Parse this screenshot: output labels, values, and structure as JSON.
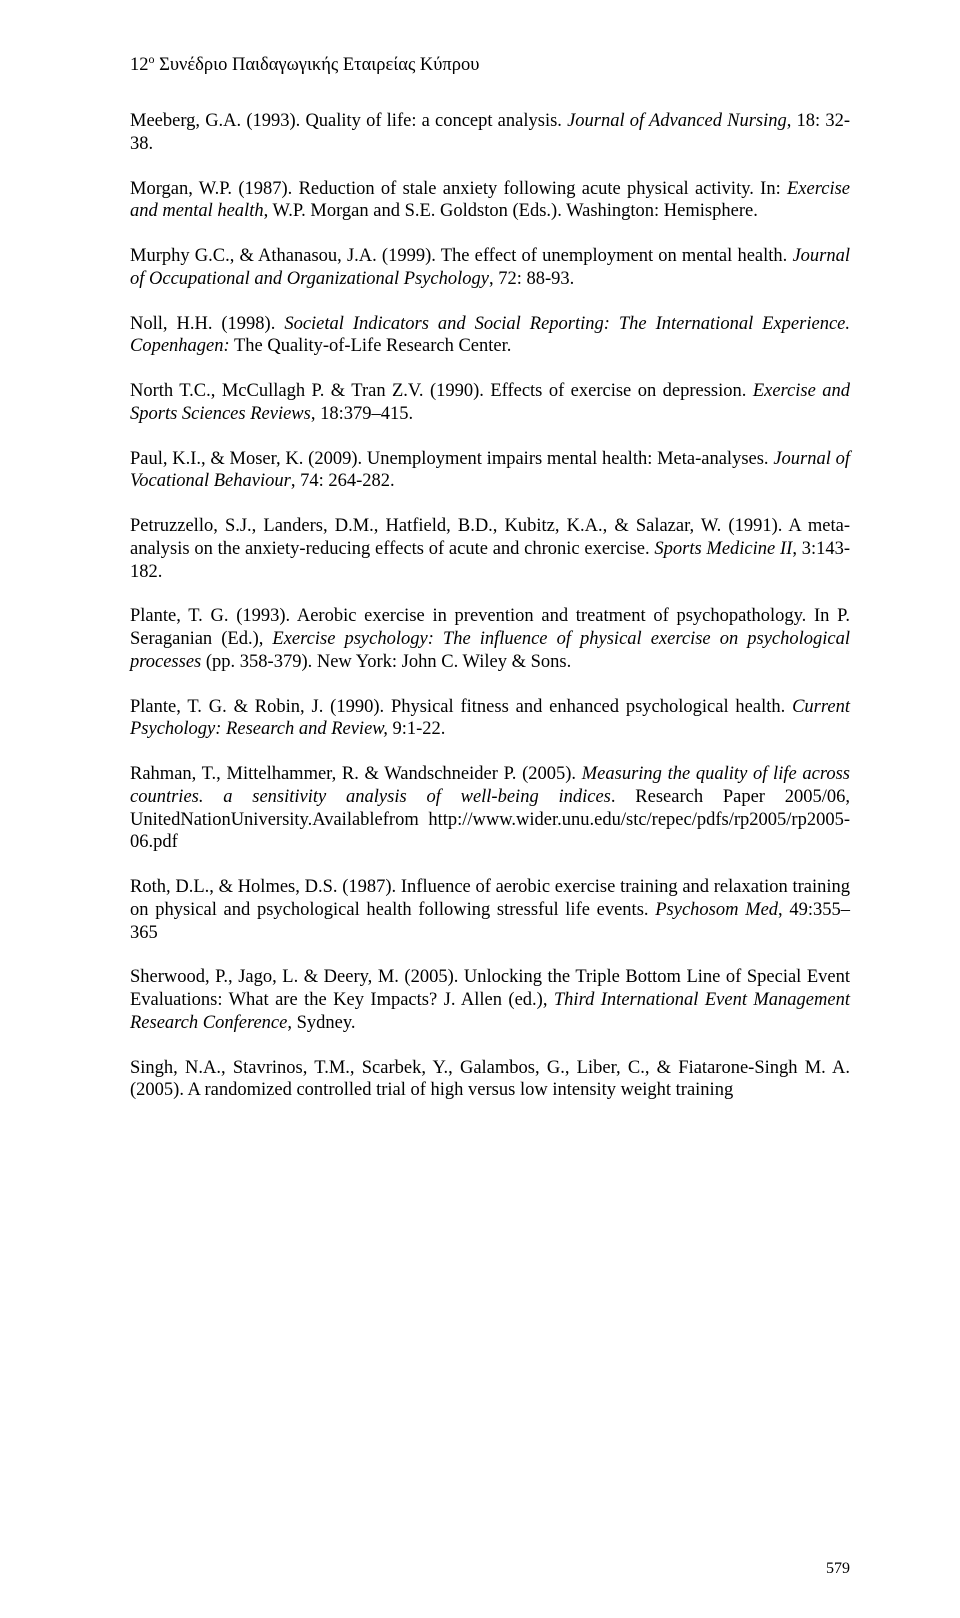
{
  "page": {
    "header_prefix": "12",
    "header_super": "ο",
    "header_rest": " Συνέδριο Παιδαγωγικής Εταιρείας Κύπρου",
    "page_number": "579"
  },
  "refs": [
    {
      "segs": [
        {
          "t": "Meeberg, G.A. (1993). Quality of life: a concept analysis. "
        },
        {
          "t": "Journal of Advanced Nursing",
          "i": true
        },
        {
          "t": ", 18: 32-38."
        }
      ]
    },
    {
      "segs": [
        {
          "t": "Morgan, W.P. (1987). Reduction of stale anxiety following acute physical activity. In: "
        },
        {
          "t": "Exercise and mental health",
          "i": true
        },
        {
          "t": ", W.P. Morgan and S.E. Goldston (Eds.). Washington: Hemisphere."
        }
      ]
    },
    {
      "segs": [
        {
          "t": "Murphy G.C., & Athanasou, J.A. (1999). The effect of unemployment on mental health. "
        },
        {
          "t": "Journal of Occupational and Organizational Psychology",
          "i": true
        },
        {
          "t": ", 72: 88-93."
        }
      ]
    },
    {
      "segs": [
        {
          "t": "Noll, H.H. (1998). "
        },
        {
          "t": "Societal Indicators and Social Reporting: The International Experience. Copenhagen:",
          "i": true
        },
        {
          "t": " The Quality-of-Life Research Center."
        }
      ]
    },
    {
      "segs": [
        {
          "t": "North T.C., McCullagh P. & Tran Z.V. (1990). Effects of exercise on depression. "
        },
        {
          "t": "Exercise and Sports Sciences Reviews",
          "i": true
        },
        {
          "t": ", 18:379–415."
        }
      ]
    },
    {
      "segs": [
        {
          "t": "Paul, K.I., & Moser, K. (2009). Unemployment impairs mental health: Meta-analyses. "
        },
        {
          "t": "Journal of Vocational Behaviour",
          "i": true
        },
        {
          "t": ", 74: 264-282."
        }
      ]
    },
    {
      "segs": [
        {
          "t": "Petruzzello, S.J., Landers, D.M., Hatfield, B.D., Kubitz, K.A., & Salazar, W. (1991). A meta-analysis on the anxiety-reducing effects of acute and chronic exercise. "
        },
        {
          "t": "Sports Medicine II",
          "i": true
        },
        {
          "t": ", 3:143-182."
        }
      ]
    },
    {
      "segs": [
        {
          "t": "Plante, T. G. (1993). Aerobic exercise in prevention and treatment of psychopathology. In P. Seraganian (Ed.), "
        },
        {
          "t": "Exercise psychology: The influence of physical exercise on psychological processes",
          "i": true
        },
        {
          "t": " (pp. 358-379). New York: John C. Wiley & Sons."
        }
      ]
    },
    {
      "segs": [
        {
          "t": "Plante, T. G. & Robin, J. (1990). Physical fitness and enhanced psychological health. "
        },
        {
          "t": "Current Psychology: Research and Review,",
          "i": true
        },
        {
          "t": " 9:1-22."
        }
      ]
    },
    {
      "segs": [
        {
          "t": "Rahman, T., Mittelhammer, R. & Wandschneider P. (2005). "
        },
        {
          "t": "Measuring the quality of life across countries. a sensitivity analysis of well-being indices",
          "i": true
        },
        {
          "t": ". Research Paper 2005/06, UnitedNationUniversity.Availablefrom http://www.wider.unu.edu/stc/repec/pdfs/rp2005/rp2005-06.pdf"
        }
      ]
    },
    {
      "segs": [
        {
          "t": "Roth, D.L., & Holmes, D.S. (1987). Influence of aerobic exercise training and relaxation training on physical and psychological health following stressful life events. "
        },
        {
          "t": "Psychosom Med",
          "i": true
        },
        {
          "t": ", 49:355–365"
        }
      ]
    },
    {
      "segs": [
        {
          "t": "Sherwood, P., Jago, L. & Deery, M. (2005). Unlocking the Triple Bottom Line of Special Event Evaluations: What are the Key Impacts? J. Allen (ed.), "
        },
        {
          "t": "Third International Event Management Research Conference",
          "i": true
        },
        {
          "t": ", Sydney."
        }
      ]
    },
    {
      "segs": [
        {
          "t": "Singh, N.A., Stavrinos, T.M., Scarbek, Y., Galambos, G., Liber, C., & Fiatarone-Singh M. A. (2005). A randomized controlled trial of high versus low intensity weight training"
        }
      ]
    }
  ]
}
